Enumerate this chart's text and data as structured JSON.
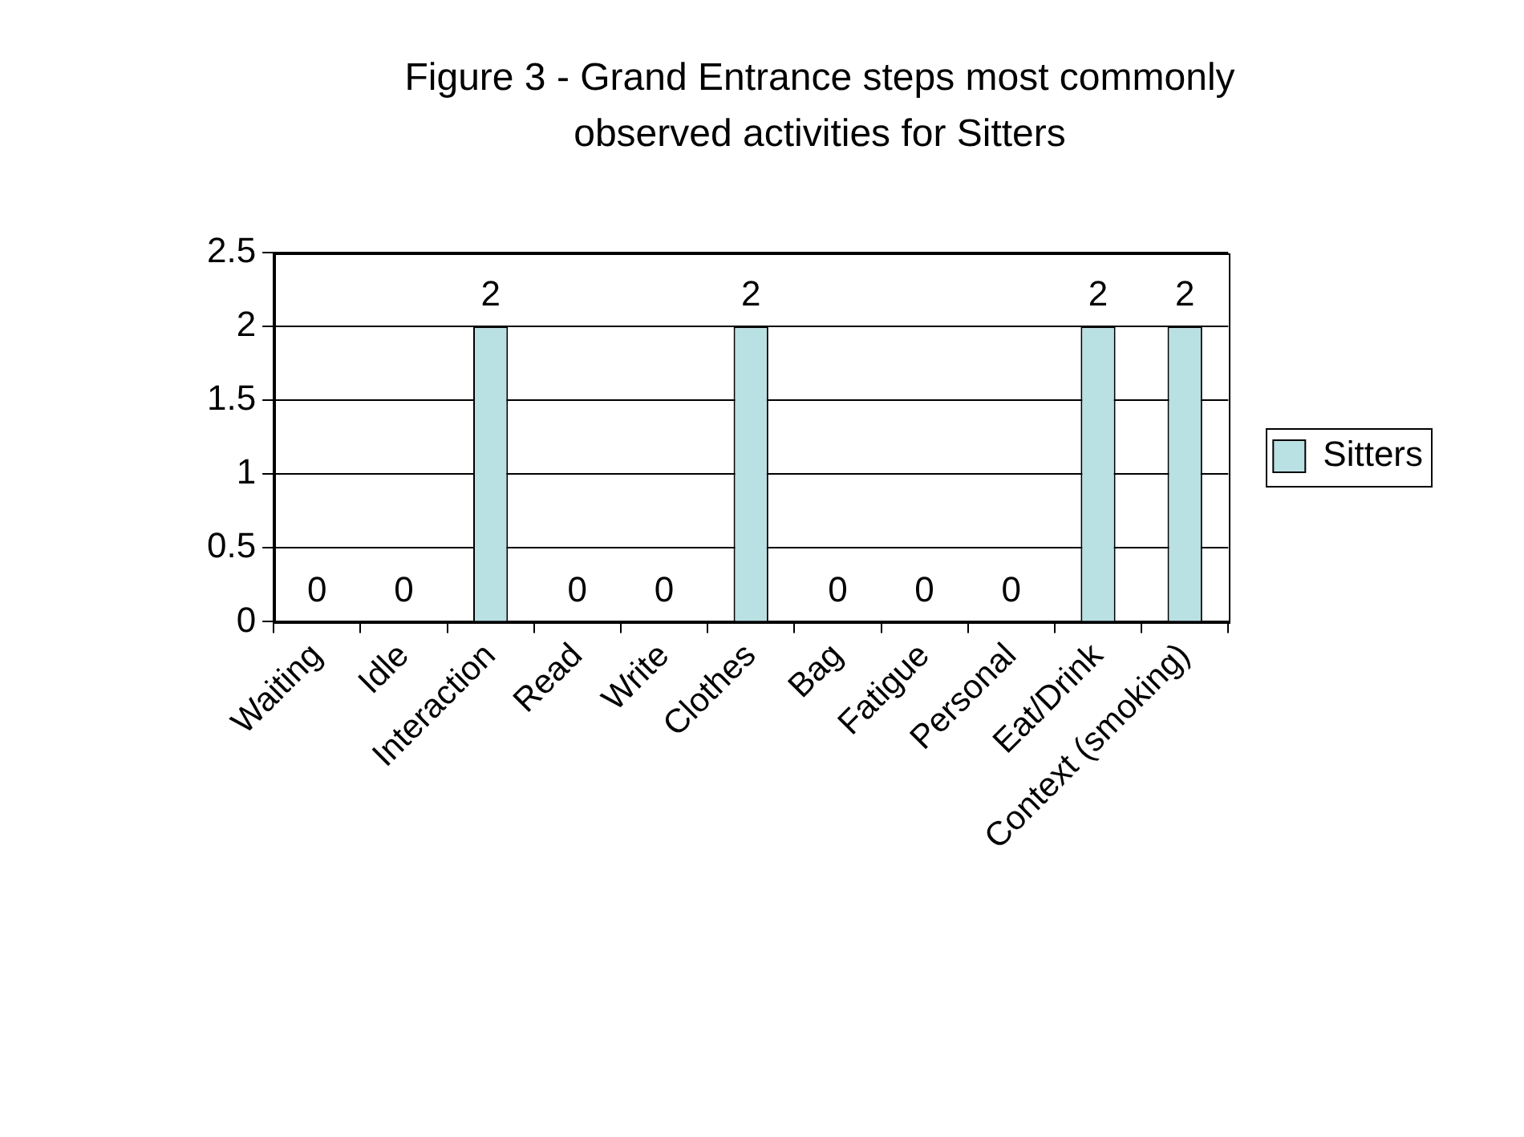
{
  "chart_data": {
    "type": "bar",
    "title": "Figure 3 - Grand Entrance steps most commonly observed activities for Sitters",
    "categories": [
      "Waiting",
      "Idle",
      "Interaction",
      "Read",
      "Write",
      "Clothes",
      "Bag",
      "Fatigue",
      "Personal",
      "Eat/Drink",
      "Context (smoking)"
    ],
    "series": [
      {
        "name": "Sitters",
        "color": "#b9e0e3",
        "values": [
          0,
          0,
          2,
          0,
          0,
          2,
          0,
          0,
          0,
          2,
          2
        ]
      }
    ],
    "ylim": [
      0,
      2.5
    ],
    "yticks": [
      0,
      0.5,
      1,
      1.5,
      2,
      2.5
    ],
    "grid": "y",
    "legend": "right",
    "data_labels": true
  }
}
